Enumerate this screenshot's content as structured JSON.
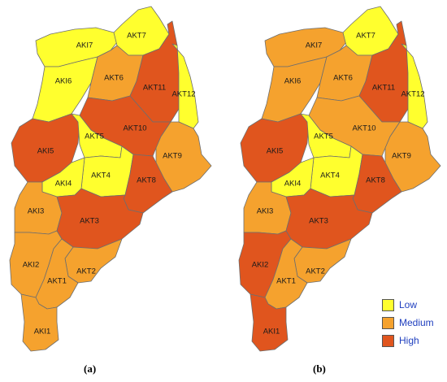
{
  "palette": {
    "low": "#ffff2e",
    "medium": "#f5a22e",
    "high": "#e0551e"
  },
  "legend": [
    {
      "key": "low",
      "label": "Low",
      "color": "#ffff2e"
    },
    {
      "key": "medium",
      "label": "Medium",
      "color": "#f5a22e"
    },
    {
      "key": "high",
      "label": "High",
      "color": "#e0551e"
    }
  ],
  "panels": [
    {
      "label": "(a)",
      "regions": [
        {
          "id": "AKI7",
          "level": "low"
        },
        {
          "id": "AKT7",
          "level": "low"
        },
        {
          "id": "AKI6",
          "level": "low"
        },
        {
          "id": "AKT6",
          "level": "medium"
        },
        {
          "id": "AKT11",
          "level": "high"
        },
        {
          "id": "AKT12",
          "level": "low"
        },
        {
          "id": "AKT10",
          "level": "high"
        },
        {
          "id": "AKI5",
          "level": "high"
        },
        {
          "id": "AKT5",
          "level": "low"
        },
        {
          "id": "AKT9",
          "level": "medium"
        },
        {
          "id": "AKT4",
          "level": "low"
        },
        {
          "id": "AKI4",
          "level": "low"
        },
        {
          "id": "AKT8",
          "level": "high"
        },
        {
          "id": "AKI3",
          "level": "medium"
        },
        {
          "id": "AKT3",
          "level": "high"
        },
        {
          "id": "AKI2",
          "level": "medium"
        },
        {
          "id": "AKT2",
          "level": "medium"
        },
        {
          "id": "AKT1",
          "level": "medium"
        },
        {
          "id": "AKI1",
          "level": "medium"
        }
      ]
    },
    {
      "label": "(b)",
      "regions": [
        {
          "id": "AKI7",
          "level": "medium"
        },
        {
          "id": "AKT7",
          "level": "low"
        },
        {
          "id": "AKI6",
          "level": "medium"
        },
        {
          "id": "AKT6",
          "level": "medium"
        },
        {
          "id": "AKT11",
          "level": "high"
        },
        {
          "id": "AKT12",
          "level": "low"
        },
        {
          "id": "AKT10",
          "level": "medium"
        },
        {
          "id": "AKI5",
          "level": "high"
        },
        {
          "id": "AKT5",
          "level": "low"
        },
        {
          "id": "AKT9",
          "level": "medium"
        },
        {
          "id": "AKT4",
          "level": "low"
        },
        {
          "id": "AKI4",
          "level": "low"
        },
        {
          "id": "AKT8",
          "level": "high"
        },
        {
          "id": "AKI3",
          "level": "medium"
        },
        {
          "id": "AKT3",
          "level": "high"
        },
        {
          "id": "AKI2",
          "level": "high"
        },
        {
          "id": "AKT2",
          "level": "medium"
        },
        {
          "id": "AKT1",
          "level": "medium"
        },
        {
          "id": "AKI1",
          "level": "high"
        }
      ]
    }
  ]
}
